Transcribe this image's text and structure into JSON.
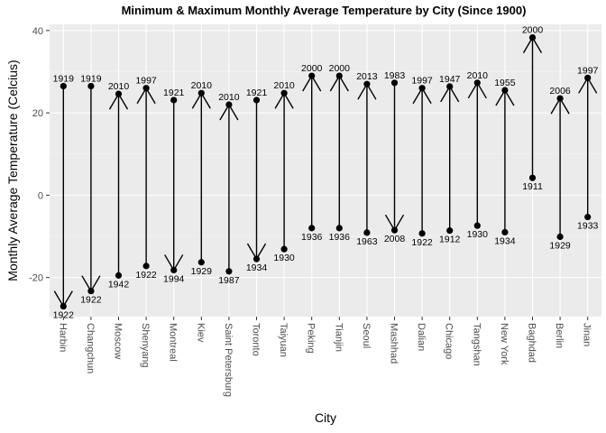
{
  "chart_data": {
    "type": "range",
    "title": "Minimum & Maximum Monthly Average Temperature by City (Since 1900)",
    "xlabel": "City",
    "ylabel": "Monthly Average Temperature (Celcius)",
    "ylim": [
      -29.5,
      41.5
    ],
    "yticks": [
      -20,
      0,
      20,
      40
    ],
    "grid": true,
    "cities": [
      {
        "name": "Harbin",
        "min": -27.0,
        "min_year": "1922",
        "max": 26.5,
        "max_year": "1919",
        "arrow": "down"
      },
      {
        "name": "Changchun",
        "min": -23.3,
        "min_year": "1922",
        "max": 26.5,
        "max_year": "1919",
        "arrow": "down"
      },
      {
        "name": "Moscow",
        "min": -19.5,
        "min_year": "1942",
        "max": 24.6,
        "max_year": "2010",
        "arrow": "up"
      },
      {
        "name": "Shenyang",
        "min": -17.2,
        "min_year": "1922",
        "max": 26.0,
        "max_year": "1997",
        "arrow": "up"
      },
      {
        "name": "Montreal",
        "min": -18.2,
        "min_year": "1994",
        "max": 23.1,
        "max_year": "1921",
        "arrow": "down"
      },
      {
        "name": "Kiev",
        "min": -16.3,
        "min_year": "1929",
        "max": 24.8,
        "max_year": "2010",
        "arrow": "up"
      },
      {
        "name": "Saint Petersburg",
        "min": -18.5,
        "min_year": "1987",
        "max": 22.0,
        "max_year": "2010",
        "arrow": "up"
      },
      {
        "name": "Toronto",
        "min": -15.5,
        "min_year": "1934",
        "max": 23.1,
        "max_year": "1921",
        "arrow": "down"
      },
      {
        "name": "Taiyuan",
        "min": -13.1,
        "min_year": "1930",
        "max": 24.8,
        "max_year": "2010",
        "arrow": "up"
      },
      {
        "name": "Peking",
        "min": -8.0,
        "min_year": "1936",
        "max": 29.0,
        "max_year": "2000",
        "arrow": "up"
      },
      {
        "name": "Tianjin",
        "min": -8.0,
        "min_year": "1936",
        "max": 29.0,
        "max_year": "2000",
        "arrow": "up"
      },
      {
        "name": "Seoul",
        "min": -9.1,
        "min_year": "1963",
        "max": 27.0,
        "max_year": "2013",
        "arrow": "up"
      },
      {
        "name": "Mashhad",
        "min": -8.5,
        "min_year": "2008",
        "max": 27.3,
        "max_year": "1983",
        "arrow": "down"
      },
      {
        "name": "Dalian",
        "min": -9.3,
        "min_year": "1922",
        "max": 26.0,
        "max_year": "1997",
        "arrow": "up"
      },
      {
        "name": "Chicago",
        "min": -8.6,
        "min_year": "1912",
        "max": 26.4,
        "max_year": "1947",
        "arrow": "up"
      },
      {
        "name": "Tangshan",
        "min": -7.4,
        "min_year": "1930",
        "max": 27.3,
        "max_year": "2010",
        "arrow": "up"
      },
      {
        "name": "New York",
        "min": -9.0,
        "min_year": "1934",
        "max": 25.5,
        "max_year": "1955",
        "arrow": "up"
      },
      {
        "name": "Baghdad",
        "min": 4.2,
        "min_year": "1911",
        "max": 38.3,
        "max_year": "2000",
        "arrow": "up"
      },
      {
        "name": "Berlin",
        "min": -10.1,
        "min_year": "1929",
        "max": 23.5,
        "max_year": "2006",
        "arrow": "up"
      },
      {
        "name": "Jinan",
        "min": -5.3,
        "min_year": "1933",
        "max": 28.5,
        "max_year": "1997",
        "arrow": "up"
      }
    ]
  }
}
